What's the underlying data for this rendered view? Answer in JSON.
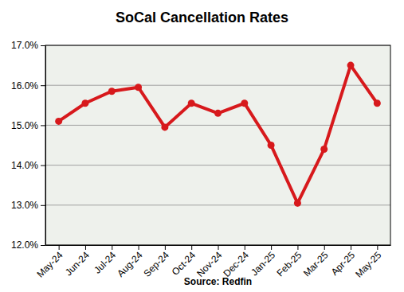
{
  "chart_data": {
    "type": "line",
    "title": "SoCal Cancellation Rates",
    "x_label": "Source: Redfin",
    "categories": [
      "May-24",
      "Jun-24",
      "Jul-24",
      "Aug-24",
      "Sep-24",
      "Oct-24",
      "Nov-24",
      "Dec-24",
      "Jan-25",
      "Feb-25",
      "Mar-25",
      "Apr-25",
      "May-25"
    ],
    "values": [
      15.1,
      15.55,
      15.85,
      15.95,
      14.95,
      15.55,
      15.3,
      15.55,
      14.5,
      13.05,
      14.4,
      16.5,
      15.55
    ],
    "color": "#d7191c",
    "marker": "circle",
    "line_style": "solid",
    "ylim": [
      12,
      17
    ],
    "yticks": [
      {
        "value": 12,
        "label": "12.0%"
      },
      {
        "value": 13,
        "label": "13.0%"
      },
      {
        "value": 14,
        "label": "14.0%"
      },
      {
        "value": 15,
        "label": "15.0%"
      },
      {
        "value": 16,
        "label": "16.0%"
      },
      {
        "value": 17,
        "label": "17.0%"
      }
    ],
    "grid": true
  }
}
